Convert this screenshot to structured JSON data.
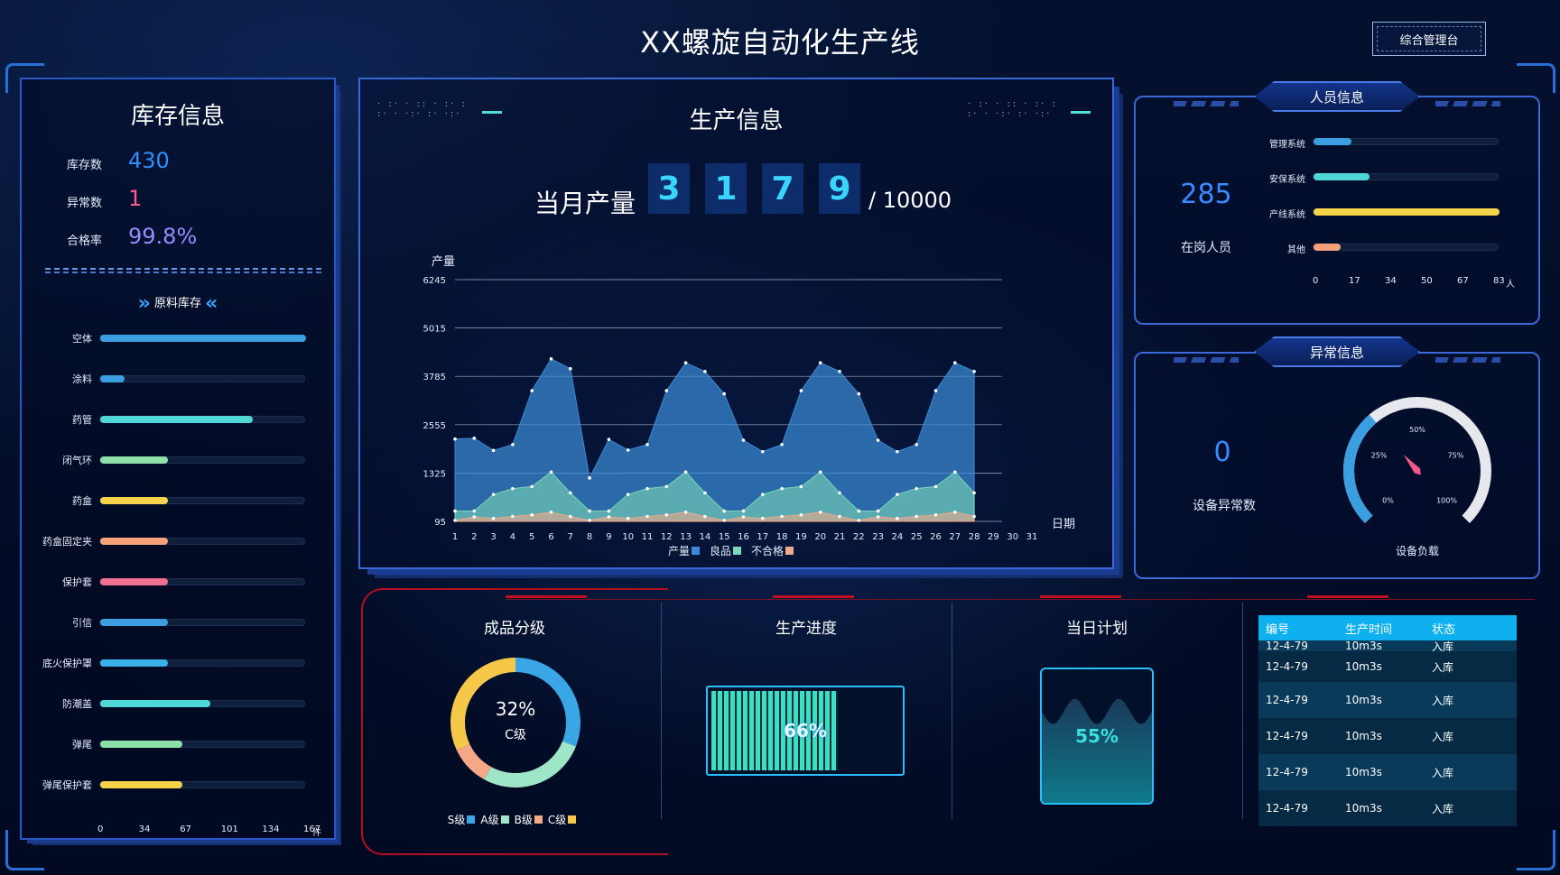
{
  "header": {
    "title": "XX螺旋自动化生产线",
    "mgmt_button": "综合管理台"
  },
  "inventory": {
    "title": "库存信息",
    "stock_label": "库存数",
    "stock_value": "430",
    "abnormal_label": "异常数",
    "abnormal_value": "1",
    "pass_label": "合格率",
    "pass_value": "99.8%",
    "raw_title": "原料库存",
    "items": [
      {
        "label": "空体",
        "value": 167
      },
      {
        "label": "涂料",
        "value": 20
      },
      {
        "label": "药管",
        "value": 124
      },
      {
        "label": "闭气环",
        "value": 55
      },
      {
        "label": "药盒",
        "value": 55
      },
      {
        "label": "药盒固定夹",
        "value": 55
      },
      {
        "label": "保护套",
        "value": 55
      },
      {
        "label": "引信",
        "value": 55
      },
      {
        "label": "底火保护罩",
        "value": 55
      },
      {
        "label": "防潮盖",
        "value": 89
      },
      {
        "label": "弹尾",
        "value": 67
      },
      {
        "label": "弹尾保护套",
        "value": 67
      }
    ],
    "bar_colors": [
      "#3a9ee0",
      "#3a9ee0",
      "#4fd6d6",
      "#8de0a8",
      "#f5d44a",
      "#f5a27a",
      "#f07090",
      "#3a9ee0",
      "#3ab0e8",
      "#4fd6d6",
      "#8de0a8",
      "#f5d44a"
    ],
    "axis_ticks": [
      "0",
      "34",
      "67",
      "101",
      "134",
      "167"
    ],
    "axis_unit": "件"
  },
  "production": {
    "title": "生产信息",
    "month_label": "当月产量",
    "digits": [
      "3",
      "1",
      "7",
      "9"
    ],
    "total": "/ 10000",
    "chart_data": {
      "type": "area",
      "ylabel": "产量",
      "xlabel": "日期",
      "yticks": [
        "6245",
        "5015",
        "3785",
        "2555",
        "1325",
        "95"
      ],
      "ylim": [
        95,
        6245
      ],
      "x": [
        1,
        2,
        3,
        4,
        5,
        6,
        7,
        8,
        9,
        10,
        11,
        12,
        13,
        14,
        15,
        16,
        17,
        18,
        19,
        20,
        21,
        22,
        23,
        24,
        25,
        26,
        27,
        28,
        29,
        30,
        31
      ],
      "series": [
        {
          "name": "产量",
          "color": "#3a8ad6",
          "values": [
            2190,
            2210,
            1900,
            2050,
            3420,
            4230,
            3980,
            1200,
            2180,
            1910,
            2050,
            3420,
            4130,
            3910,
            3340,
            2160,
            1870,
            2050,
            3420,
            4130,
            3910,
            3340,
            2160,
            1870,
            2050,
            3420,
            4130,
            3910,
            null,
            null,
            null
          ]
        },
        {
          "name": "良品",
          "color": "#7ad8b8",
          "values": [
            360,
            360,
            780,
            930,
            980,
            1350,
            820,
            360,
            360,
            780,
            930,
            980,
            1350,
            820,
            360,
            360,
            780,
            930,
            980,
            1350,
            820,
            360,
            360,
            780,
            930,
            980,
            1350,
            820,
            null,
            null,
            null
          ]
        },
        {
          "name": "不合格",
          "color": "#f0a888",
          "values": [
            120,
            210,
            170,
            220,
            260,
            330,
            220,
            120,
            210,
            170,
            220,
            260,
            330,
            220,
            120,
            210,
            170,
            220,
            260,
            330,
            220,
            120,
            210,
            170,
            220,
            260,
            330,
            220,
            null,
            null,
            null
          ]
        }
      ]
    }
  },
  "personnel": {
    "tab": "人员信息",
    "count": "285",
    "count_label": "在岗人员",
    "bars": [
      {
        "label": "管理系统",
        "value": 17,
        "color": "#3a9ee0"
      },
      {
        "label": "安保系统",
        "value": 25,
        "color": "#4fd6d6"
      },
      {
        "label": "产线系统",
        "value": 83,
        "color": "#f5d44a"
      },
      {
        "label": "其他",
        "value": 12,
        "color": "#f5a27a"
      }
    ],
    "axis_ticks": [
      "0",
      "17",
      "34",
      "50",
      "67",
      "83"
    ],
    "axis_unit": "人"
  },
  "abnormal": {
    "tab": "异常信息",
    "count": "0",
    "count_label": "设备异常数",
    "gauge_label": "设备负载",
    "gauge_ticks": [
      "0%",
      "25%",
      "50%",
      "75%",
      "100%"
    ],
    "gauge_value": 0.35
  },
  "grading": {
    "title": "成品分级",
    "center_value": "32%",
    "center_label": "C级",
    "chart_data": {
      "type": "pie",
      "slices": [
        {
          "name": "S级",
          "value": 31,
          "color": "#3aa6e6"
        },
        {
          "name": "A级",
          "value": 27,
          "color": "#9fe6c8"
        },
        {
          "name": "B级",
          "value": 10,
          "color": "#f5a888"
        },
        {
          "name": "C级",
          "value": 32,
          "color": "#f5c84a"
        }
      ]
    }
  },
  "progress": {
    "title": "生产进度",
    "value": 0.66,
    "label": "66%"
  },
  "plan": {
    "title": "当日计划",
    "value": 0.55,
    "label": "55%"
  },
  "records": {
    "headers": [
      "编号",
      "生产时间",
      "状态"
    ],
    "rows": [
      [
        "12-4-79",
        "10m3s",
        "入库"
      ],
      [
        "12-4-79",
        "10m3s",
        "入库"
      ],
      [
        "12-4-79",
        "10m3s",
        "入库"
      ],
      [
        "12-4-79",
        "10m3s",
        "入库"
      ],
      [
        "12-4-79",
        "10m3s",
        "入库"
      ],
      [
        "12-4-79",
        "10m3s",
        "入库"
      ]
    ]
  }
}
